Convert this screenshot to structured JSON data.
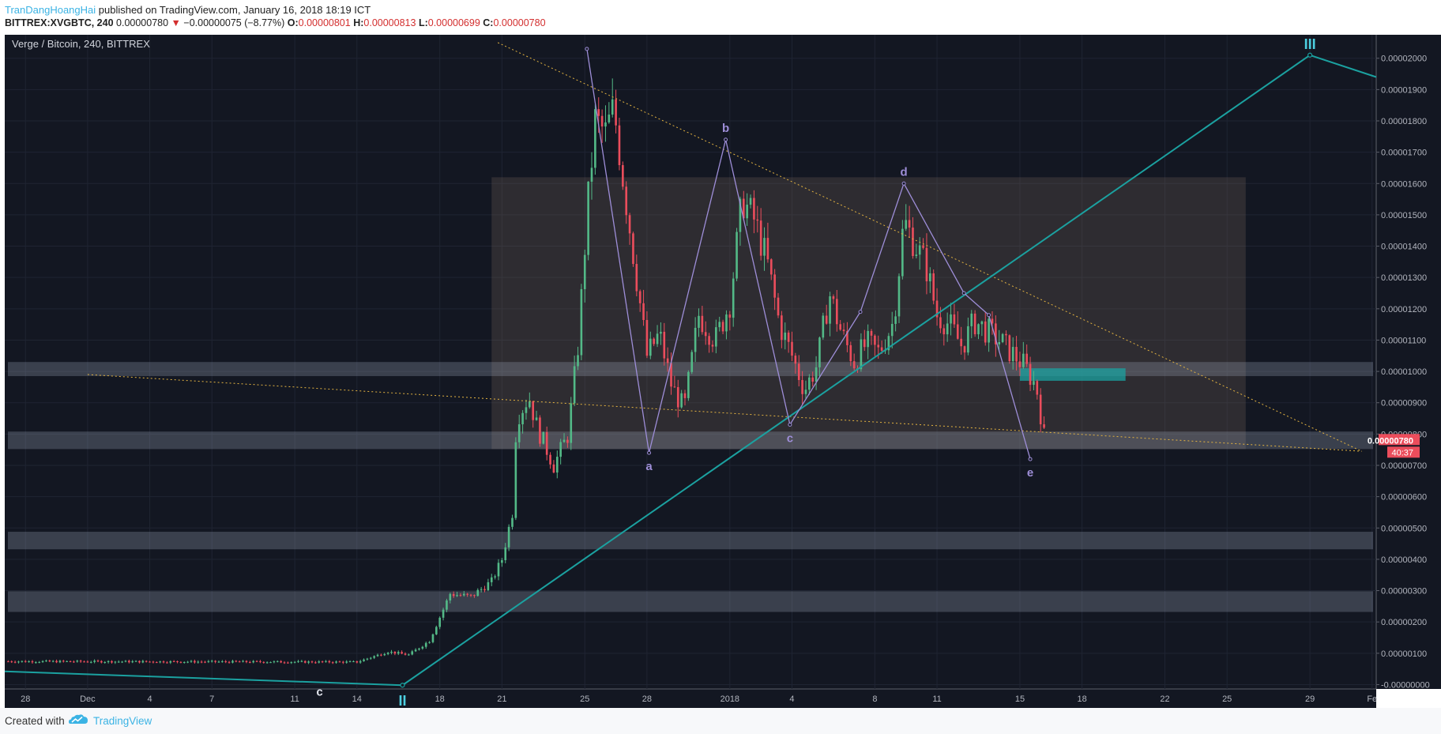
{
  "header": {
    "author": "TranDangHoangHai",
    "published_text": " published on TradingView.com, January 16, 2018 18:19 ICT",
    "symbol": "BITTREX:XVGBTC, 240",
    "last": "0.00000780",
    "change": "−0.00000075 (−8.77%)",
    "o_label": "O:",
    "o_value": "0.00000801",
    "h_label": "H:",
    "h_value": "0.00000813",
    "l_label": "L:",
    "l_value": "0.00000699",
    "c_label": "C:",
    "c_value": "0.00000780"
  },
  "footer": {
    "created_with": "Created with",
    "brand": "TradingView"
  },
  "chart_data": {
    "type": "candlestick",
    "title": "Verge / Bitcoin, 240, BITTREX",
    "last_price_label": "0.00000780",
    "countdown_label": "40:37",
    "ylim": [
      -1.4e-07,
      2.075e-05
    ],
    "y_ticks": [
      {
        "value": 2e-05,
        "label": "0.00002000"
      },
      {
        "value": 1.9e-05,
        "label": "0.00001900"
      },
      {
        "value": 1.8e-05,
        "label": "0.00001800"
      },
      {
        "value": 1.7e-05,
        "label": "0.00001700"
      },
      {
        "value": 1.6e-05,
        "label": "0.00001600"
      },
      {
        "value": 1.5e-05,
        "label": "0.00001500"
      },
      {
        "value": 1.4e-05,
        "label": "0.00001400"
      },
      {
        "value": 1.3e-05,
        "label": "0.00001300"
      },
      {
        "value": 1.2e-05,
        "label": "0.00001200"
      },
      {
        "value": 1.1e-05,
        "label": "0.00001100"
      },
      {
        "value": 1e-05,
        "label": "0.00001000"
      },
      {
        "value": 9e-06,
        "label": "0.00000900"
      },
      {
        "value": 8e-06,
        "label": "0.00000800"
      },
      {
        "value": 7e-06,
        "label": "0.00000700"
      },
      {
        "value": 6e-06,
        "label": "0.00000600"
      },
      {
        "value": 5e-06,
        "label": "0.00000500"
      },
      {
        "value": 4e-06,
        "label": "0.00000400"
      },
      {
        "value": 3e-06,
        "label": "0.00000300"
      },
      {
        "value": 2e-06,
        "label": "0.00000200"
      },
      {
        "value": 1e-06,
        "label": "0.00000100"
      },
      {
        "value": 0.0,
        "label": "-0.00000000"
      }
    ],
    "x_ticks": [
      {
        "day": -3,
        "label": "28"
      },
      {
        "day": 0,
        "label": "Dec"
      },
      {
        "day": 3,
        "label": "4"
      },
      {
        "day": 6,
        "label": "7"
      },
      {
        "day": 10,
        "label": "11"
      },
      {
        "day": 13,
        "label": "14"
      },
      {
        "day": 17,
        "label": "18"
      },
      {
        "day": 20,
        "label": "21"
      },
      {
        "day": 24,
        "label": "25"
      },
      {
        "day": 27,
        "label": "28"
      },
      {
        "day": 31,
        "label": "2018"
      },
      {
        "day": 34,
        "label": "4"
      },
      {
        "day": 38,
        "label": "8"
      },
      {
        "day": 41,
        "label": "11"
      },
      {
        "day": 45,
        "label": "15"
      },
      {
        "day": 48,
        "label": "18"
      },
      {
        "day": 52,
        "label": "22"
      },
      {
        "day": 55,
        "label": "25"
      },
      {
        "day": 59,
        "label": "29"
      },
      {
        "day": 62,
        "label": "Fe"
      }
    ],
    "xlim": [
      -4,
      62.2
    ],
    "close_path": [
      [
        -4,
        7.4e-07
      ],
      [
        13,
        7.2e-07
      ],
      [
        14.5,
        1.05e-06
      ],
      [
        15.5,
        9.5e-07
      ],
      [
        16.5,
        1.4e-06
      ],
      [
        17.5,
        2.9e-06
      ],
      [
        18.5,
        2.8e-06
      ],
      [
        19.5,
        3.3e-06
      ],
      [
        20,
        4e-06
      ],
      [
        20.5,
        5.5e-06
      ],
      [
        20.7,
        8.5e-06
      ],
      [
        21.3,
        9.2e-06
      ],
      [
        21.7,
        8.2e-06
      ],
      [
        22.5,
        7e-06
      ],
      [
        23.2,
        8e-06
      ],
      [
        23.7,
        1.1e-05
      ],
      [
        24.1,
        1.5e-05
      ],
      [
        24.5,
        1.8e-05
      ],
      [
        25,
        1.76e-05
      ],
      [
        25.4,
        1.84e-05
      ],
      [
        26,
        1.54e-05
      ],
      [
        26.6,
        1.25e-05
      ],
      [
        27,
        1.05e-05
      ],
      [
        27.6,
        1.12e-05
      ],
      [
        28.2,
        9.5e-06
      ],
      [
        28.8,
        8.8e-06
      ],
      [
        29.5,
        1.18e-05
      ],
      [
        30.3,
        1.1e-05
      ],
      [
        31,
        1.22e-05
      ],
      [
        31.6,
        1.55e-05
      ],
      [
        32.2,
        1.48e-05
      ],
      [
        32.8,
        1.35e-05
      ],
      [
        33.4,
        1.15e-05
      ],
      [
        34.0,
        1.05e-05
      ],
      [
        34.6,
        9.4e-06
      ],
      [
        35.2,
        1.02e-05
      ],
      [
        35.8,
        1.25e-05
      ],
      [
        36.4,
        1.12e-05
      ],
      [
        37.0,
        1.03e-05
      ],
      [
        37.6,
        1.09e-05
      ],
      [
        38.2,
        1.06e-05
      ],
      [
        38.9,
        1.16e-05
      ],
      [
        39.4,
        1.48e-05
      ],
      [
        40,
        1.4e-05
      ],
      [
        40.5,
        1.33e-05
      ],
      [
        41,
        1.18e-05
      ],
      [
        41.6,
        1.15e-05
      ],
      [
        42.2,
        1.08e-05
      ],
      [
        42.8,
        1.16e-05
      ],
      [
        43.4,
        1.13e-05
      ],
      [
        44.0,
        1.1e-05
      ],
      [
        44.6,
        1.06e-05
      ],
      [
        45.2,
        1.02e-05
      ],
      [
        45.8,
        9.5e-06
      ],
      [
        46.2,
        7.8e-06
      ]
    ],
    "zones": [
      {
        "kind": "box",
        "day_from": 19.5,
        "day_to": 55.9,
        "y_from": 7.52e-06,
        "y_to": 1.62e-05
      },
      {
        "kind": "band",
        "y_from": 9.85e-06,
        "y_to": 1.03e-05
      },
      {
        "kind": "band",
        "y_from": 7.52e-06,
        "y_to": 8.08e-06
      },
      {
        "kind": "band",
        "y_from": 4.32e-06,
        "y_to": 4.88e-06
      },
      {
        "kind": "band",
        "y_from": 2.32e-06,
        "y_to": 2.98e-06
      },
      {
        "kind": "target",
        "day_from": 45,
        "day_to": 50.1,
        "y_from": 9.7e-06,
        "y_to": 1.01e-05
      }
    ],
    "trendlines": [
      {
        "kind": "resistance",
        "from": [
          19.8,
          2.05e-05
        ],
        "to": [
          61.5,
          7.45e-06
        ]
      },
      {
        "kind": "support",
        "from": [
          0,
          9.9e-06
        ],
        "to": [
          61.5,
          7.45e-06
        ]
      },
      {
        "kind": "channel",
        "from": [
          -4,
          4.2e-07
        ],
        "to": [
          15.2,
          -2e-08
        ]
      },
      {
        "kind": "channel",
        "from": [
          15.2,
          -2e-08
        ],
        "to": [
          59,
          2.01e-05
        ]
      },
      {
        "kind": "channel",
        "from": [
          59,
          2.01e-05
        ],
        "to": [
          62.2,
          1.94e-05
        ]
      }
    ],
    "wave_path": [
      [
        24.1,
        2.03e-05
      ],
      [
        27.1,
        7.4e-06
      ],
      [
        30.8,
        1.74e-05
      ],
      [
        33.9,
        8.3e-06
      ],
      [
        37.3,
        1.19e-05
      ],
      [
        39.4,
        1.6e-05
      ],
      [
        42.3,
        1.25e-05
      ],
      [
        43.5,
        1.18e-05
      ],
      [
        45.5,
        7.2e-06
      ]
    ],
    "wave_labels": [
      {
        "text": "a",
        "day": 27.1,
        "y": 7.4e-06
      },
      {
        "text": "b",
        "day": 30.8,
        "y": 1.74e-05
      },
      {
        "text": "c",
        "day": 33.9,
        "y": 8.3e-06
      },
      {
        "text": "d",
        "day": 39.4,
        "y": 1.6e-05
      },
      {
        "text": "e",
        "day": 45.5,
        "y": 7.2e-06
      }
    ],
    "early_labels": [
      {
        "text": "c",
        "day": 11.2,
        "y": 3e-07
      },
      {
        "text": "II",
        "day": 15.2,
        "y": -2e-08
      },
      {
        "text": "III",
        "day": 59,
        "y": 2.01e-05
      }
    ],
    "colors": {
      "background": "#131722",
      "bullish": "#53b987",
      "bearish": "#eb4d5c",
      "channel": "#1ba1a0",
      "wave": "#9e8ed8",
      "resistance": "#e3b341",
      "label_cyan": "#4dd0e1"
    }
  }
}
